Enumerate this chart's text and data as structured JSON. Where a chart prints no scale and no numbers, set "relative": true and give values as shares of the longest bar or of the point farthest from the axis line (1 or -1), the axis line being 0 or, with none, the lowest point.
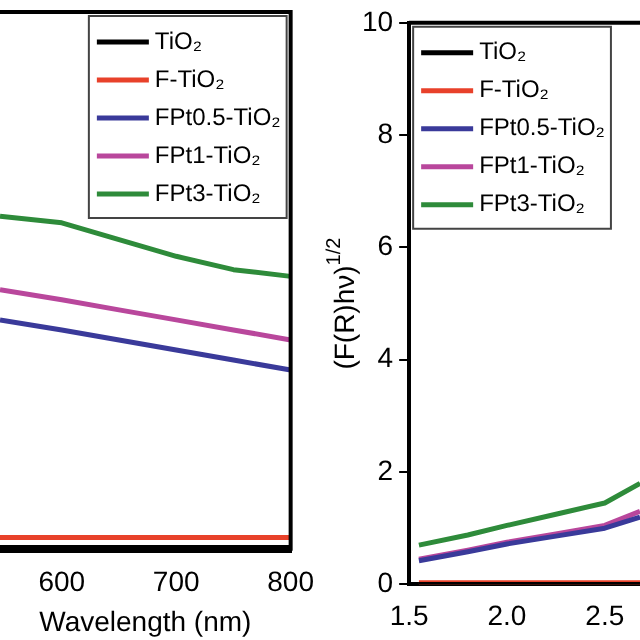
{
  "chart_data": [
    {
      "type": "line",
      "relative": true,
      "xlabel": "Wavelength (nm)",
      "x": [
        546,
        600,
        650,
        700,
        750,
        800
      ],
      "xlim": [
        546,
        800
      ],
      "xticks": [
        600,
        700,
        800
      ],
      "legend": "top right",
      "grid": false,
      "series": [
        {
          "name": "TiO₂",
          "color": "#000000",
          "values": [
            0.01,
            0.01,
            0.01,
            0.01,
            0.01,
            0.01
          ]
        },
        {
          "name": "F-TiO₂",
          "color": "#e8412a",
          "values": [
            0.04,
            0.04,
            0.04,
            0.04,
            0.04,
            0.04
          ]
        },
        {
          "name": "FPt0.5-TiO₂",
          "color": "#3a3a9a",
          "values": [
            0.69,
            0.66,
            0.63,
            0.6,
            0.57,
            0.54
          ]
        },
        {
          "name": "FPt1-TiO₂",
          "color": "#b9479c",
          "values": [
            0.78,
            0.75,
            0.72,
            0.69,
            0.66,
            0.63
          ]
        },
        {
          "name": "FPt3-TiO₂",
          "color": "#2e8b3a",
          "values": [
            1,
            0.98,
            0.93,
            0.88,
            0.84,
            0.82
          ]
        }
      ]
    },
    {
      "type": "line",
      "ylabel": "(F(R)hν)$^{1/2}$",
      "x": [
        1.55,
        1.8,
        2.0,
        2.25,
        2.5,
        2.68
      ],
      "xlim": [
        1.5,
        2.68
      ],
      "xticks": [
        1.5,
        {
          "value": 2,
          "label": "2.0"
        },
        2.5
      ],
      "ylim": [
        0,
        10
      ],
      "yticks": [
        0,
        2,
        4,
        6,
        8,
        10
      ],
      "legend": "top left",
      "grid": false,
      "series": [
        {
          "name": "TiO₂",
          "color": "#000000",
          "values": [
            0.0,
            0.0,
            0.0,
            0.0,
            0.0,
            0.0
          ]
        },
        {
          "name": "F-TiO₂",
          "color": "#e8412a",
          "values": [
            0.03,
            0.03,
            0.03,
            0.03,
            0.03,
            0.03
          ]
        },
        {
          "name": "FPt0.5-TiO₂",
          "color": "#3a3a9a",
          "values": [
            0.42,
            0.58,
            0.72,
            0.86,
            1.0,
            1.2
          ]
        },
        {
          "name": "FPt1-TiO₂",
          "color": "#b9479c",
          "values": [
            0.45,
            0.61,
            0.75,
            0.9,
            1.05,
            1.3
          ]
        },
        {
          "name": "FPt3-TiO₂",
          "color": "#2e8b3a",
          "values": [
            0.7,
            0.88,
            1.05,
            1.25,
            1.45,
            1.8
          ]
        }
      ]
    }
  ]
}
